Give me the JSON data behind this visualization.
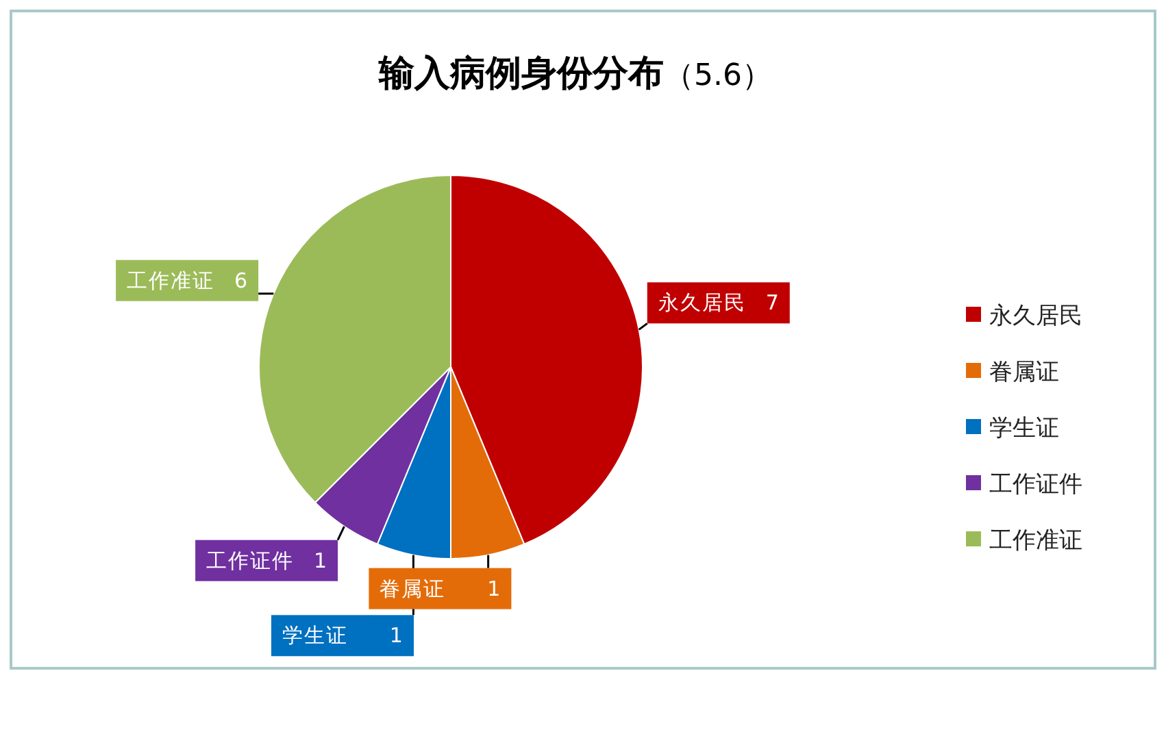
{
  "chart_data": {
    "type": "pie",
    "title": "**输入病例身份分布**（5.6）",
    "categories": [
      "永久居民",
      "眷属证",
      "学生证",
      "工作证件",
      "工作准证"
    ],
    "values": [
      7,
      1,
      1,
      1,
      6
    ],
    "colors": [
      "#c00000",
      "#e36c09",
      "#0070c0",
      "#7030a0",
      "#9bbb59"
    ],
    "data_labels": true,
    "legend": "right"
  }
}
